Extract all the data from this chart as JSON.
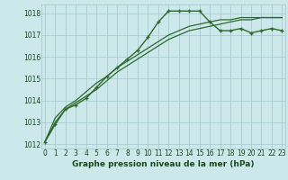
{
  "x": [
    0,
    1,
    2,
    3,
    4,
    5,
    6,
    7,
    8,
    9,
    10,
    11,
    12,
    13,
    14,
    15,
    16,
    17,
    18,
    19,
    20,
    21,
    22,
    23
  ],
  "series1": [
    1012.1,
    1012.9,
    1013.6,
    1013.8,
    1014.1,
    1014.6,
    1015.1,
    1015.5,
    1015.9,
    1016.3,
    1016.9,
    1017.6,
    1018.1,
    1018.1,
    1018.1,
    1018.1,
    1017.6,
    1017.2,
    1017.2,
    1017.3,
    1017.1,
    1017.2,
    1017.3,
    1017.2
  ],
  "series2": [
    1012.1,
    1013.0,
    1013.6,
    1013.9,
    1014.2,
    1014.5,
    1014.9,
    1015.3,
    1015.6,
    1015.9,
    1016.2,
    1016.5,
    1016.8,
    1017.0,
    1017.2,
    1017.3,
    1017.4,
    1017.5,
    1017.6,
    1017.7,
    1017.7,
    1017.8,
    1017.8,
    1017.8
  ],
  "series3": [
    1012.1,
    1013.2,
    1013.7,
    1014.0,
    1014.4,
    1014.8,
    1015.1,
    1015.5,
    1015.8,
    1016.1,
    1016.4,
    1016.7,
    1017.0,
    1017.2,
    1017.4,
    1017.5,
    1017.6,
    1017.7,
    1017.7,
    1017.8,
    1017.8,
    1017.8,
    1017.8,
    1017.8
  ],
  "ylim": [
    1011.8,
    1018.4
  ],
  "yticks": [
    1012,
    1013,
    1014,
    1015,
    1016,
    1017,
    1018
  ],
  "xlim": [
    -0.3,
    23.3
  ],
  "line_color": "#2d6a2d",
  "bg_color": "#cce8ea",
  "grid_color": "#a0c8cc",
  "xlabel": "Graphe pression niveau de la mer (hPa)",
  "xlabel_color": "#1a4a1a",
  "xlabel_fontsize": 6.5,
  "tick_fontsize": 5.5,
  "ytick_fontsize": 5.5
}
